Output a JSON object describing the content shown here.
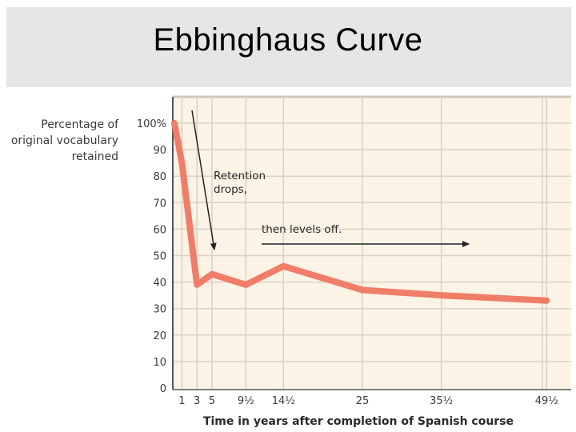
{
  "slide": {
    "title": "Ebbinghaus Curve"
  },
  "chart_data": {
    "type": "line",
    "ylabel_lines": [
      "Percentage of",
      "original vocabulary",
      "retained"
    ],
    "xlabel": "Time in years after completion of Spanish course",
    "x_ticks": [
      {
        "value": 1,
        "label": "1"
      },
      {
        "value": 3,
        "label": "3"
      },
      {
        "value": 5,
        "label": "5"
      },
      {
        "value": 9.5,
        "label": "9½"
      },
      {
        "value": 14.5,
        "label": "14½"
      },
      {
        "value": 25,
        "label": "25"
      },
      {
        "value": 35.5,
        "label": "35½"
      },
      {
        "value": 49.5,
        "label": "49½"
      }
    ],
    "y_ticks": [
      "0",
      "10",
      "20",
      "30",
      "40",
      "50",
      "60",
      "70",
      "80",
      "90",
      "100%"
    ],
    "ylim": [
      0,
      100
    ],
    "grid": true,
    "series": [
      {
        "points": [
          [
            0,
            100
          ],
          [
            1,
            85
          ],
          [
            3,
            39
          ],
          [
            5,
            43
          ],
          [
            9.5,
            39
          ],
          [
            14.5,
            46
          ],
          [
            25,
            37
          ],
          [
            35.5,
            35
          ],
          [
            49.5,
            33
          ]
        ],
        "color": "#f07d68"
      }
    ],
    "annotations": {
      "retention_line1": "Retention",
      "retention_line2": "drops,",
      "levels_off": "then levels off."
    },
    "colors": {
      "background": "#faf3e6",
      "grid": "#d9d2c4",
      "axis": "#555555"
    }
  }
}
